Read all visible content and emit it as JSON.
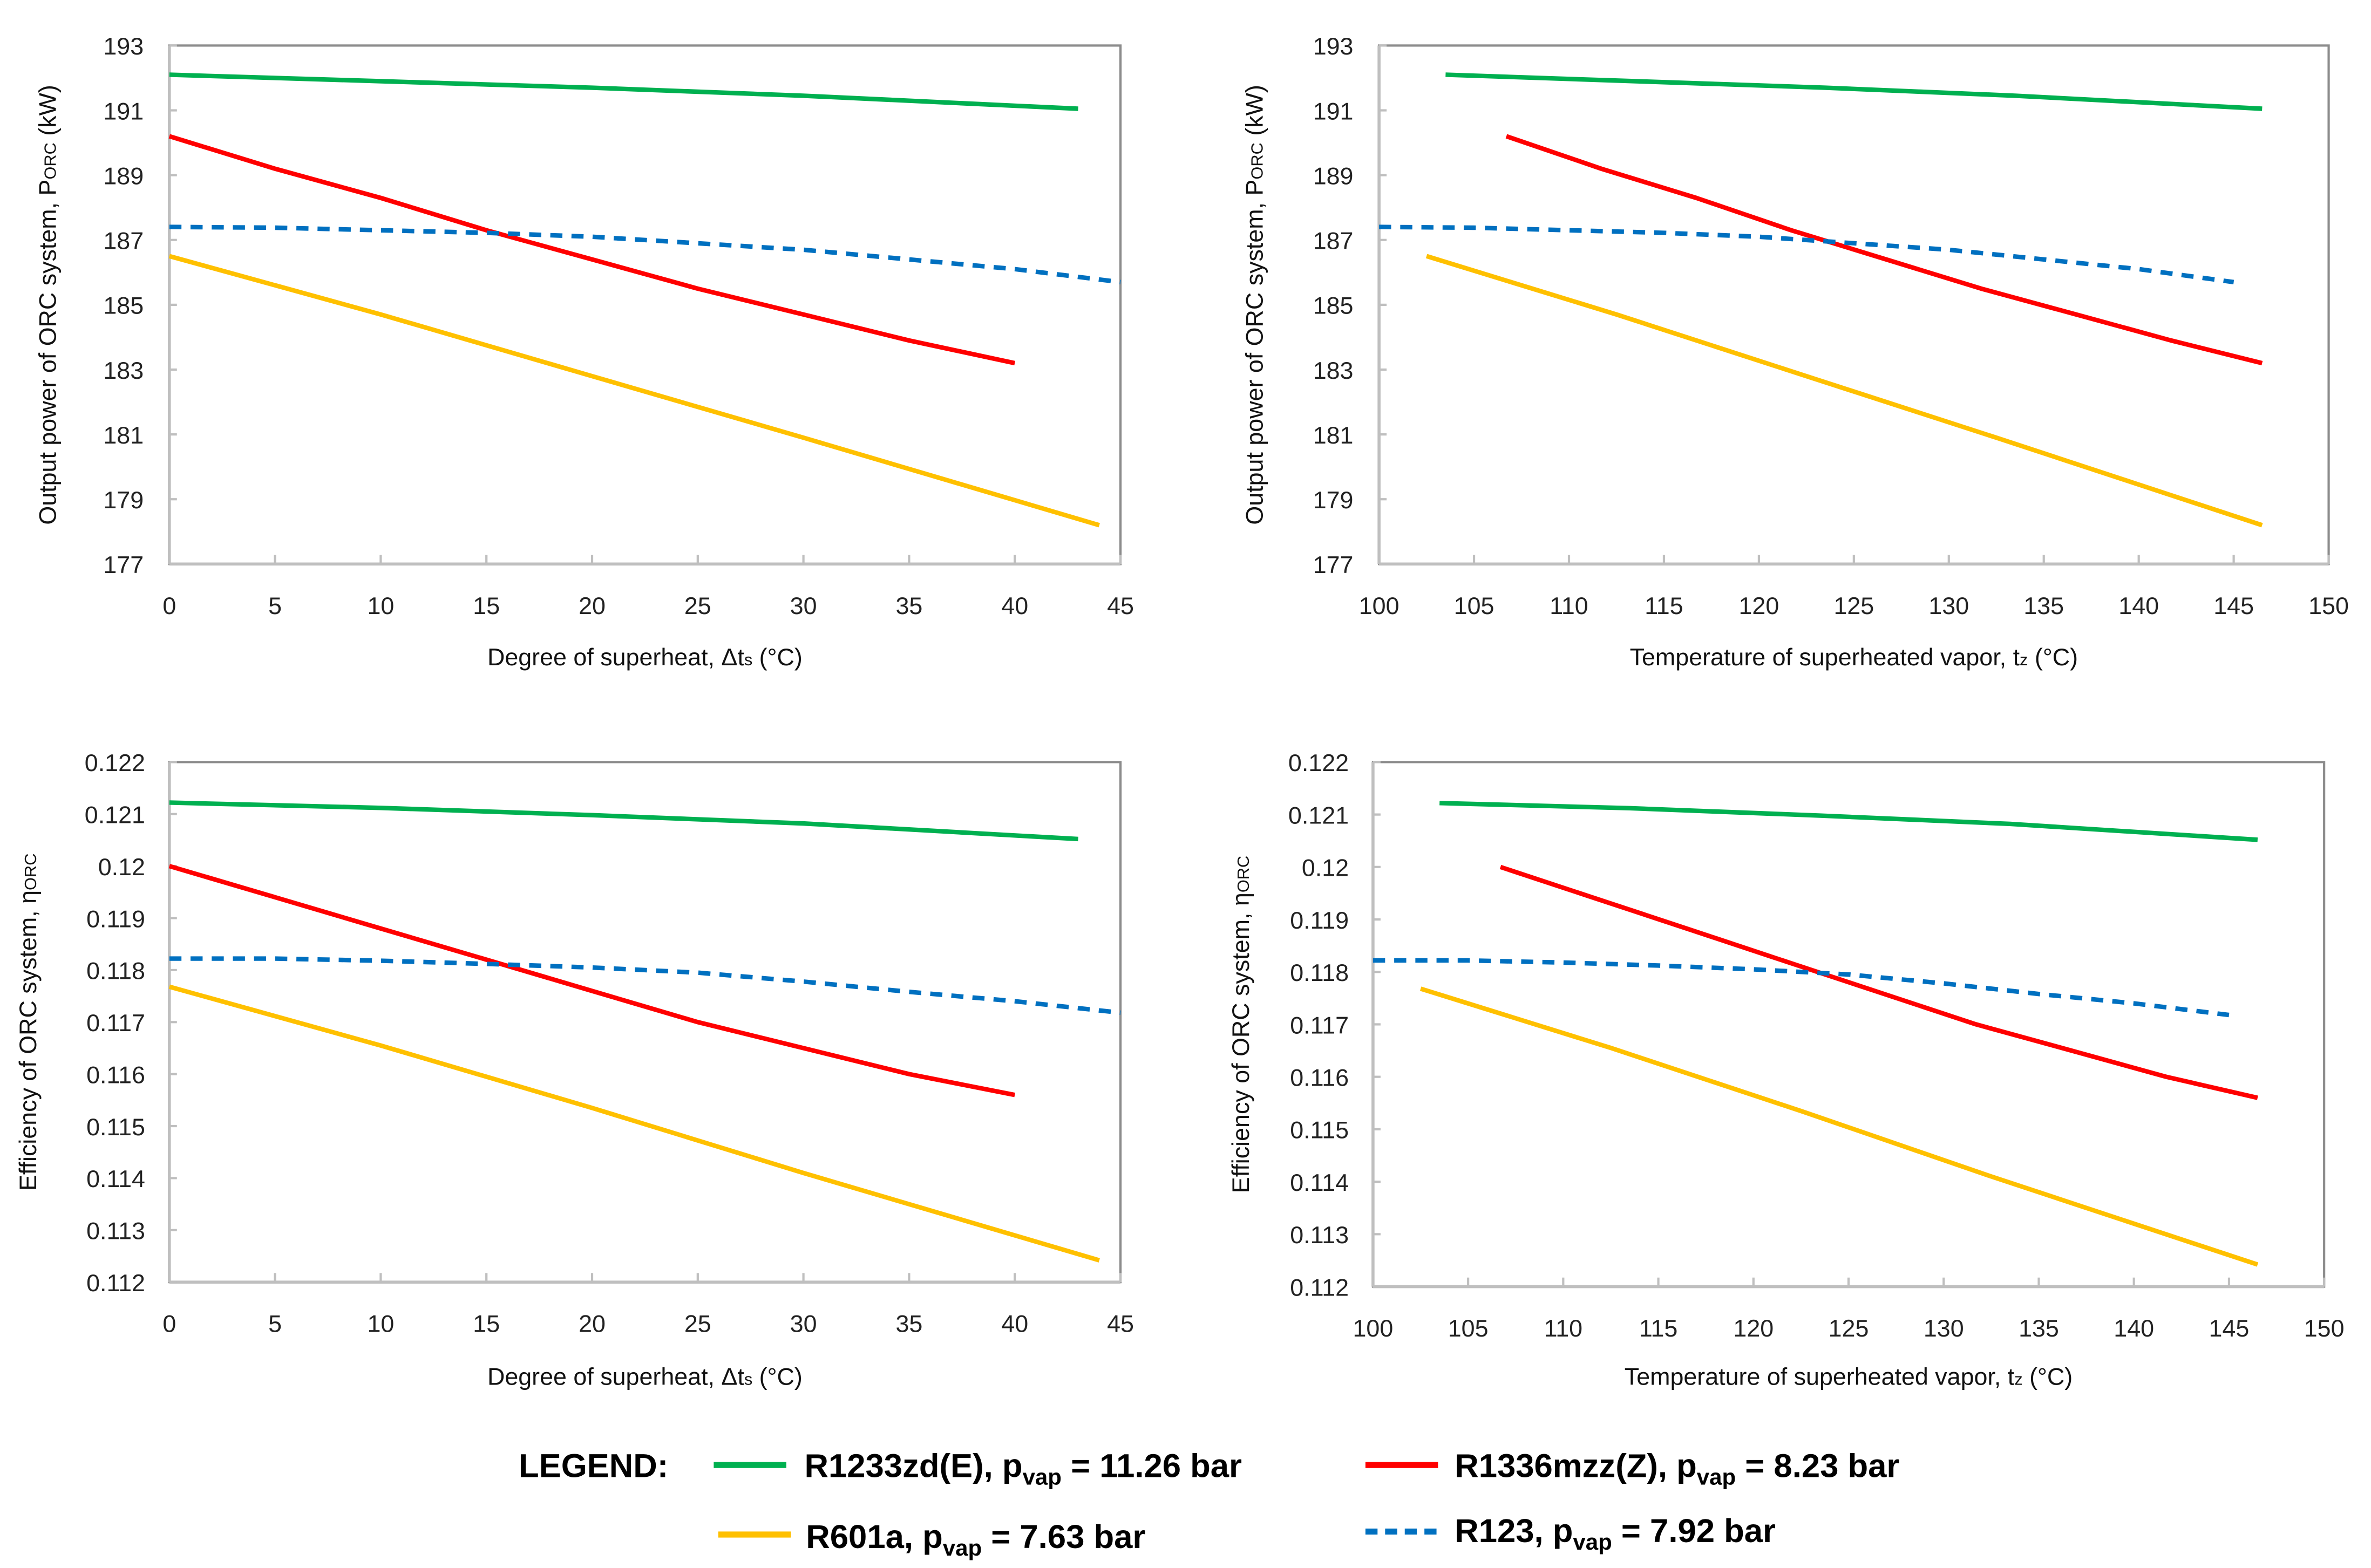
{
  "colors": {
    "R1233zd(E)": "#00b050",
    "R1336mzz(Z)": "#ff0000",
    "R601a": "#ffc000",
    "R123": "#0070c0"
  },
  "legend": {
    "title": "LEGEND:",
    "entries": [
      {
        "key": "R1233zd(E)",
        "pre": "R1233zd(E), p",
        "sub": "vap",
        "post": " = 11.26 bar",
        "dashed": false
      },
      {
        "key": "R1336mzz(Z)",
        "pre": "R1336mzz(Z), p",
        "sub": "vap",
        "post": " = 8.23 bar",
        "dashed": false
      },
      {
        "key": "R601a",
        "pre": "R601a, p",
        "sub": "vap",
        "post": " = 7.63 bar",
        "dashed": false
      },
      {
        "key": "R123",
        "pre": "R123, p",
        "sub": "vap",
        "post": " = 7.92 bar",
        "dashed": true
      }
    ]
  },
  "chart_data": [
    {
      "type": "line",
      "xlabel": {
        "pre": "Degree of superheat, Δt",
        "sub": "s",
        "post": " (°C)"
      },
      "ylabel": {
        "pre": "Output power of ORC system, P",
        "sub": "ORC",
        "post": " (kW)"
      },
      "xlim": [
        0,
        45
      ],
      "ylim": [
        177,
        193
      ],
      "xticks": [
        "0",
        "5",
        "10",
        "15",
        "20",
        "25",
        "30",
        "35",
        "40",
        "45"
      ],
      "yticks": [
        "177",
        "179",
        "181",
        "183",
        "185",
        "187",
        "189",
        "191",
        "193"
      ],
      "series": [
        {
          "name": "R1233zd(E)",
          "x": [
            0,
            10,
            20,
            30,
            43
          ],
          "y": [
            192.1,
            191.9,
            191.7,
            191.45,
            191.05
          ]
        },
        {
          "name": "R1336mzz(Z)",
          "x": [
            0,
            5,
            10,
            15,
            20,
            25,
            30,
            35,
            40
          ],
          "y": [
            190.2,
            189.2,
            188.3,
            187.3,
            186.4,
            185.5,
            184.7,
            183.9,
            183.2
          ]
        },
        {
          "name": "R123",
          "x": [
            0,
            5,
            10,
            15,
            20,
            25,
            30,
            35,
            40,
            45
          ],
          "y": [
            187.4,
            187.38,
            187.3,
            187.22,
            187.1,
            186.9,
            186.7,
            186.4,
            186.1,
            185.7
          ]
        },
        {
          "name": "R601a",
          "x": [
            0,
            10,
            20,
            30,
            44
          ],
          "y": [
            186.5,
            184.7,
            182.8,
            180.9,
            178.2
          ]
        }
      ]
    },
    {
      "type": "line",
      "xlabel": {
        "pre": "Temperature of superheated vapor, t",
        "sub": "z",
        "post": " (°C)"
      },
      "ylabel": {
        "pre": "Output power of ORC system, P",
        "sub": "ORC",
        "post": " (kW)"
      },
      "xlim": [
        100,
        150
      ],
      "ylim": [
        177,
        193
      ],
      "xticks": [
        "100",
        "105",
        "110",
        "115",
        "120",
        "125",
        "130",
        "135",
        "140",
        "145",
        "150"
      ],
      "yticks": [
        "177",
        "179",
        "181",
        "183",
        "185",
        "187",
        "189",
        "191",
        "193"
      ],
      "series": [
        {
          "name": "R1233zd(E)",
          "x": [
            103.5,
            113.5,
            123.5,
            133.5,
            146.5
          ],
          "y": [
            192.1,
            191.9,
            191.7,
            191.45,
            191.05
          ]
        },
        {
          "name": "R1336mzz(Z)",
          "x": [
            106.7,
            111.7,
            116.7,
            121.7,
            126.7,
            131.7,
            136.7,
            141.7,
            146.5
          ],
          "y": [
            190.2,
            189.2,
            188.3,
            187.3,
            186.4,
            185.5,
            184.7,
            183.9,
            183.2
          ]
        },
        {
          "name": "R123",
          "x": [
            100,
            105,
            110,
            115,
            120,
            125,
            130,
            135,
            140,
            145
          ],
          "y": [
            187.4,
            187.38,
            187.3,
            187.22,
            187.1,
            186.9,
            186.7,
            186.4,
            186.1,
            185.7
          ]
        },
        {
          "name": "R601a",
          "x": [
            102.5,
            112.5,
            122.5,
            132.5,
            146.5
          ],
          "y": [
            186.5,
            184.7,
            182.8,
            180.9,
            178.2
          ]
        }
      ]
    },
    {
      "type": "line",
      "xlabel": {
        "pre": "Degree of superheat, Δt",
        "sub": "s",
        "post": " (°C)"
      },
      "ylabel": {
        "pre": "Efficiency of ORC system, η",
        "sub": "ORC",
        "post": ""
      },
      "xlim": [
        0,
        45
      ],
      "ylim": [
        0.112,
        0.122
      ],
      "xticks": [
        "0",
        "5",
        "10",
        "15",
        "20",
        "25",
        "30",
        "35",
        "40",
        "45"
      ],
      "yticks": [
        "0.112",
        "0.113",
        "0.114",
        "0.115",
        "0.116",
        "0.117",
        "0.118",
        "0.119",
        "0.12",
        "0.121",
        "0.122"
      ],
      "series": [
        {
          "name": "R1233zd(E)",
          "x": [
            0,
            10,
            20,
            30,
            43
          ],
          "y": [
            0.12122,
            0.12112,
            0.12098,
            0.12082,
            0.12052
          ]
        },
        {
          "name": "R1336mzz(Z)",
          "x": [
            0,
            5,
            10,
            15,
            20,
            25,
            30,
            35,
            40
          ],
          "y": [
            0.12,
            0.1194,
            0.1188,
            0.1182,
            0.1176,
            0.117,
            0.1165,
            0.116,
            0.1156
          ]
        },
        {
          "name": "R123",
          "x": [
            0,
            5,
            10,
            15,
            20,
            25,
            30,
            35,
            40,
            45
          ],
          "y": [
            0.11822,
            0.11822,
            0.11818,
            0.11812,
            0.11805,
            0.11795,
            0.11778,
            0.11758,
            0.1174,
            0.11718
          ]
        },
        {
          "name": "R601a",
          "x": [
            0,
            10,
            20,
            30,
            44
          ],
          "y": [
            0.11768,
            0.11655,
            0.11535,
            0.1141,
            0.11242
          ]
        }
      ]
    },
    {
      "type": "line",
      "xlabel": {
        "pre": "Temperature of superheated vapor, t",
        "sub": "z",
        "post": " (°C)"
      },
      "ylabel": {
        "pre": "Efficiency of ORC system, η",
        "sub": "ORC",
        "post": ""
      },
      "xlim": [
        100,
        150
      ],
      "ylim": [
        0.112,
        0.122
      ],
      "xticks": [
        "100",
        "105",
        "110",
        "115",
        "120",
        "125",
        "130",
        "135",
        "140",
        "145",
        "150"
      ],
      "yticks": [
        "0.112",
        "0.113",
        "0.114",
        "0.115",
        "0.116",
        "0.117",
        "0.118",
        "0.119",
        "0.12",
        "0.121",
        "0.122"
      ],
      "series": [
        {
          "name": "R1233zd(E)",
          "x": [
            103.5,
            113.5,
            123.5,
            133.5,
            146.5
          ],
          "y": [
            0.12122,
            0.12112,
            0.12098,
            0.12082,
            0.12052
          ]
        },
        {
          "name": "R1336mzz(Z)",
          "x": [
            106.7,
            111.7,
            116.7,
            121.7,
            126.7,
            131.7,
            136.7,
            141.7,
            146.5
          ],
          "y": [
            0.12,
            0.1194,
            0.1188,
            0.1182,
            0.1176,
            0.117,
            0.1165,
            0.116,
            0.1156
          ]
        },
        {
          "name": "R123",
          "x": [
            100,
            105,
            110,
            115,
            120,
            125,
            130,
            135,
            140,
            145
          ],
          "y": [
            0.11822,
            0.11822,
            0.11818,
            0.11812,
            0.11805,
            0.11795,
            0.11778,
            0.11758,
            0.1174,
            0.11718
          ]
        },
        {
          "name": "R601a",
          "x": [
            102.5,
            112.5,
            122.5,
            132.5,
            146.5
          ],
          "y": [
            0.11768,
            0.11655,
            0.11535,
            0.1141,
            0.11242
          ]
        }
      ]
    }
  ]
}
